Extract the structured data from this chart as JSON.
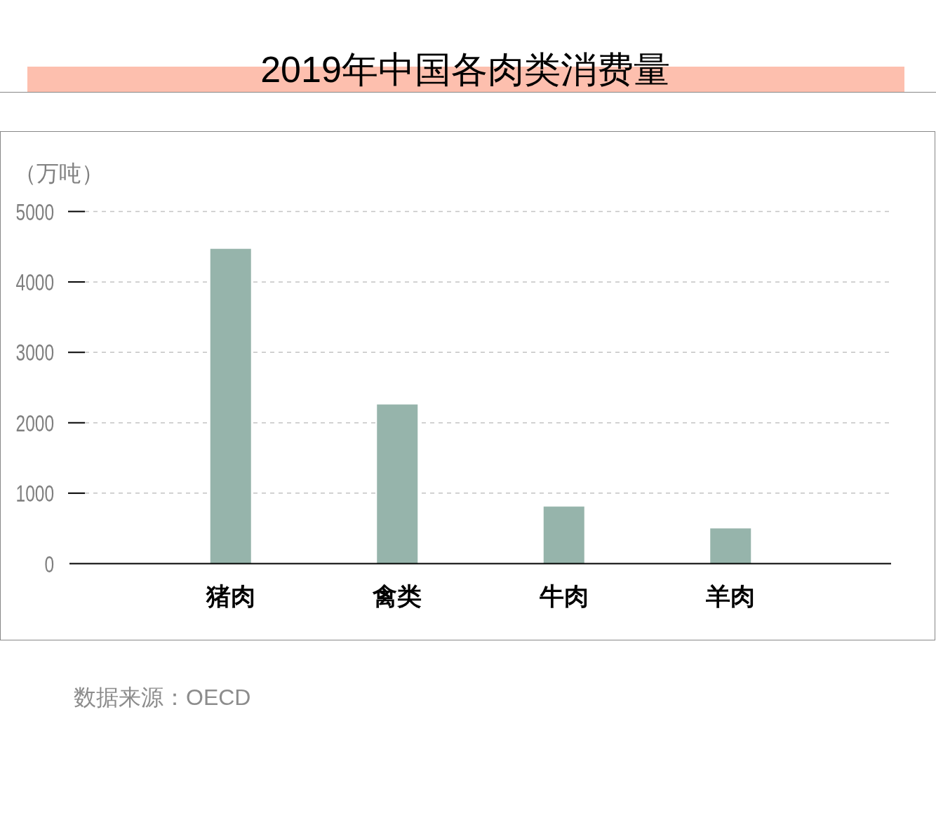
{
  "chart_data": {
    "type": "bar",
    "title": "2019年中国各肉类消费量",
    "ylabel": "（万吨）",
    "categories": [
      "猪肉",
      "禽类",
      "牛肉",
      "羊肉"
    ],
    "values": [
      4470,
      2260,
      810,
      500
    ],
    "color": "#96b4ab",
    "ylim": [
      0,
      5000
    ],
    "yticks": [
      0,
      1000,
      2000,
      3000,
      4000,
      5000
    ],
    "grid": "y",
    "annotations": [
      "数据来源：OECD"
    ]
  }
}
